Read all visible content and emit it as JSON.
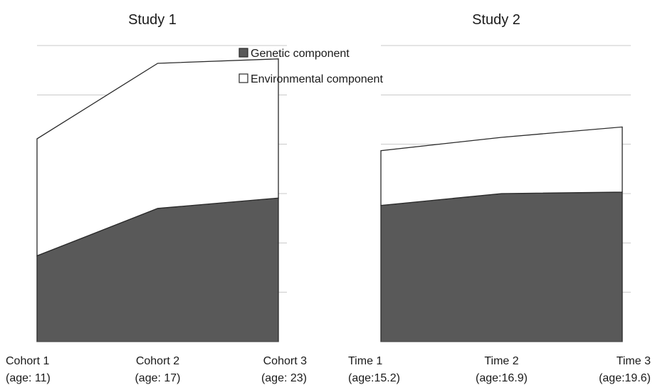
{
  "chart_data": [
    {
      "type": "area",
      "title": "Study 1",
      "categories": [
        "Cohort 1",
        "Cohort 2",
        "Cohort 3"
      ],
      "category_sublabels": [
        "(age: 11)",
        "(age: 17)",
        "(age: 23)"
      ],
      "series": [
        {
          "name": "Genetic component",
          "values": [
            0.29,
            0.45,
            0.485
          ],
          "color": "#595959"
        },
        {
          "name": "Environmental component",
          "values": [
            0.395,
            0.49,
            0.47
          ],
          "color": "#ffffff"
        }
      ],
      "stacked": true,
      "ylim": [
        0,
        1.0
      ],
      "grid": true,
      "legend": "top-right"
    },
    {
      "type": "area",
      "title": "Study 2",
      "categories": [
        "Time 1",
        "Time 2",
        "Time 3"
      ],
      "category_sublabels": [
        "(age:15.2)",
        "(age:16.9)",
        "(age:19.6)"
      ],
      "series": [
        {
          "name": "Genetic component",
          "values": [
            0.46,
            0.5,
            0.505
          ],
          "color": "#595959"
        },
        {
          "name": "Environmental component",
          "values": [
            0.185,
            0.19,
            0.22
          ],
          "color": "#ffffff"
        }
      ],
      "stacked": true,
      "ylim": [
        0,
        1.0
      ],
      "grid": true
    }
  ]
}
